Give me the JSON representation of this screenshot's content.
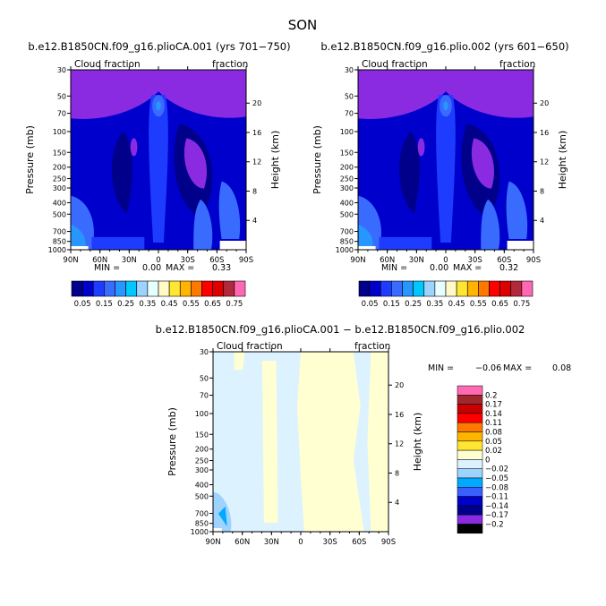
{
  "page_title": "SON",
  "colors": {
    "abs": [
      "#8a2be2",
      "#00008b",
      "#0000cd",
      "#1e3cff",
      "#3a6bff",
      "#2896ff",
      "#00c8ff",
      "#9ed2ff",
      "#e6ffff",
      "#fffac8",
      "#ffe632",
      "#ffb400",
      "#ff7800",
      "#ff0000",
      "#dc0000",
      "#b4283c",
      "#ff69b4"
    ],
    "diff": [
      "#8a2be2",
      "#00008b",
      "#0000cd",
      "#3a5fff",
      "#00aaff",
      "#9ed2ff",
      "#dcf2ff",
      "#ffffd2",
      "#ffe632",
      "#ffb400",
      "#ff7800",
      "#ff0000",
      "#c80000",
      "#a0282d",
      "#ff69b4"
    ]
  },
  "chart_data": [
    {
      "type": "heatmap",
      "title": "b.e12.B1850CN.f09_g16.plioCA.001 (yrs 701−750)",
      "left_label": "Cloud fraction",
      "right_label": "fraction",
      "xlabel": "",
      "ylabel": "Pressure (mb)",
      "y2label": "Height (km)",
      "x_ticks": [
        "90N",
        "60N",
        "30N",
        "0",
        "30S",
        "60S",
        "90S"
      ],
      "y_ticks": [
        "1000",
        "850",
        "700",
        "500",
        "400",
        "300",
        "250",
        "200",
        "150",
        "100",
        "70",
        "50",
        "30"
      ],
      "y2_ticks": [
        "4",
        "8",
        "12",
        "16",
        "20"
      ],
      "min_label": "MIN =",
      "min_value": "0.00",
      "max_label": "MAX =",
      "max_value": "0.33",
      "colorbar_labels": [
        "0.05",
        "0.15",
        "0.25",
        "0.35",
        "0.45",
        "0.55",
        "0.65",
        "0.75"
      ]
    },
    {
      "type": "heatmap",
      "title": "b.e12.B1850CN.f09_g16.plio.002 (yrs 601−650)",
      "left_label": "Cloud fraction",
      "right_label": "fraction",
      "xlabel": "",
      "ylabel": "Pressure (mb)",
      "y2label": "Height (km)",
      "x_ticks": [
        "90N",
        "60N",
        "30N",
        "0",
        "30S",
        "60S",
        "90S"
      ],
      "y_ticks": [
        "1000",
        "850",
        "700",
        "500",
        "400",
        "300",
        "250",
        "200",
        "150",
        "100",
        "70",
        "50",
        "30"
      ],
      "y2_ticks": [
        "4",
        "8",
        "12",
        "16",
        "20"
      ],
      "min_label": "MIN =",
      "min_value": "0.00",
      "max_label": "MAX =",
      "max_value": "0.32",
      "colorbar_labels": [
        "0.05",
        "0.15",
        "0.25",
        "0.35",
        "0.45",
        "0.55",
        "0.65",
        "0.75"
      ]
    },
    {
      "type": "heatmap",
      "title": "b.e12.B1850CN.f09_g16.plioCA.001 − b.e12.B1850CN.f09_g16.plio.002",
      "left_label": "Cloud fraction",
      "right_label": "fraction",
      "xlabel": "",
      "ylabel": "Pressure (mb)",
      "y2label": "Height (km)",
      "x_ticks": [
        "90N",
        "60N",
        "30N",
        "0",
        "30S",
        "60S",
        "90S"
      ],
      "y_ticks": [
        "1000",
        "850",
        "700",
        "500",
        "400",
        "300",
        "250",
        "200",
        "150",
        "100",
        "70",
        "50",
        "30"
      ],
      "y2_ticks": [
        "4",
        "8",
        "12",
        "16",
        "20"
      ],
      "min_label": "MIN =",
      "min_value": "−0.06",
      "max_label": "MAX =",
      "max_value": "0.08",
      "colorbar_labels": [
        "0.2",
        "0.17",
        "0.14",
        "0.11",
        "0.08",
        "0.05",
        "0.02",
        "0",
        "−0.02",
        "−0.05",
        "−0.08",
        "−0.11",
        "−0.14",
        "−0.17",
        "−0.2"
      ]
    }
  ]
}
